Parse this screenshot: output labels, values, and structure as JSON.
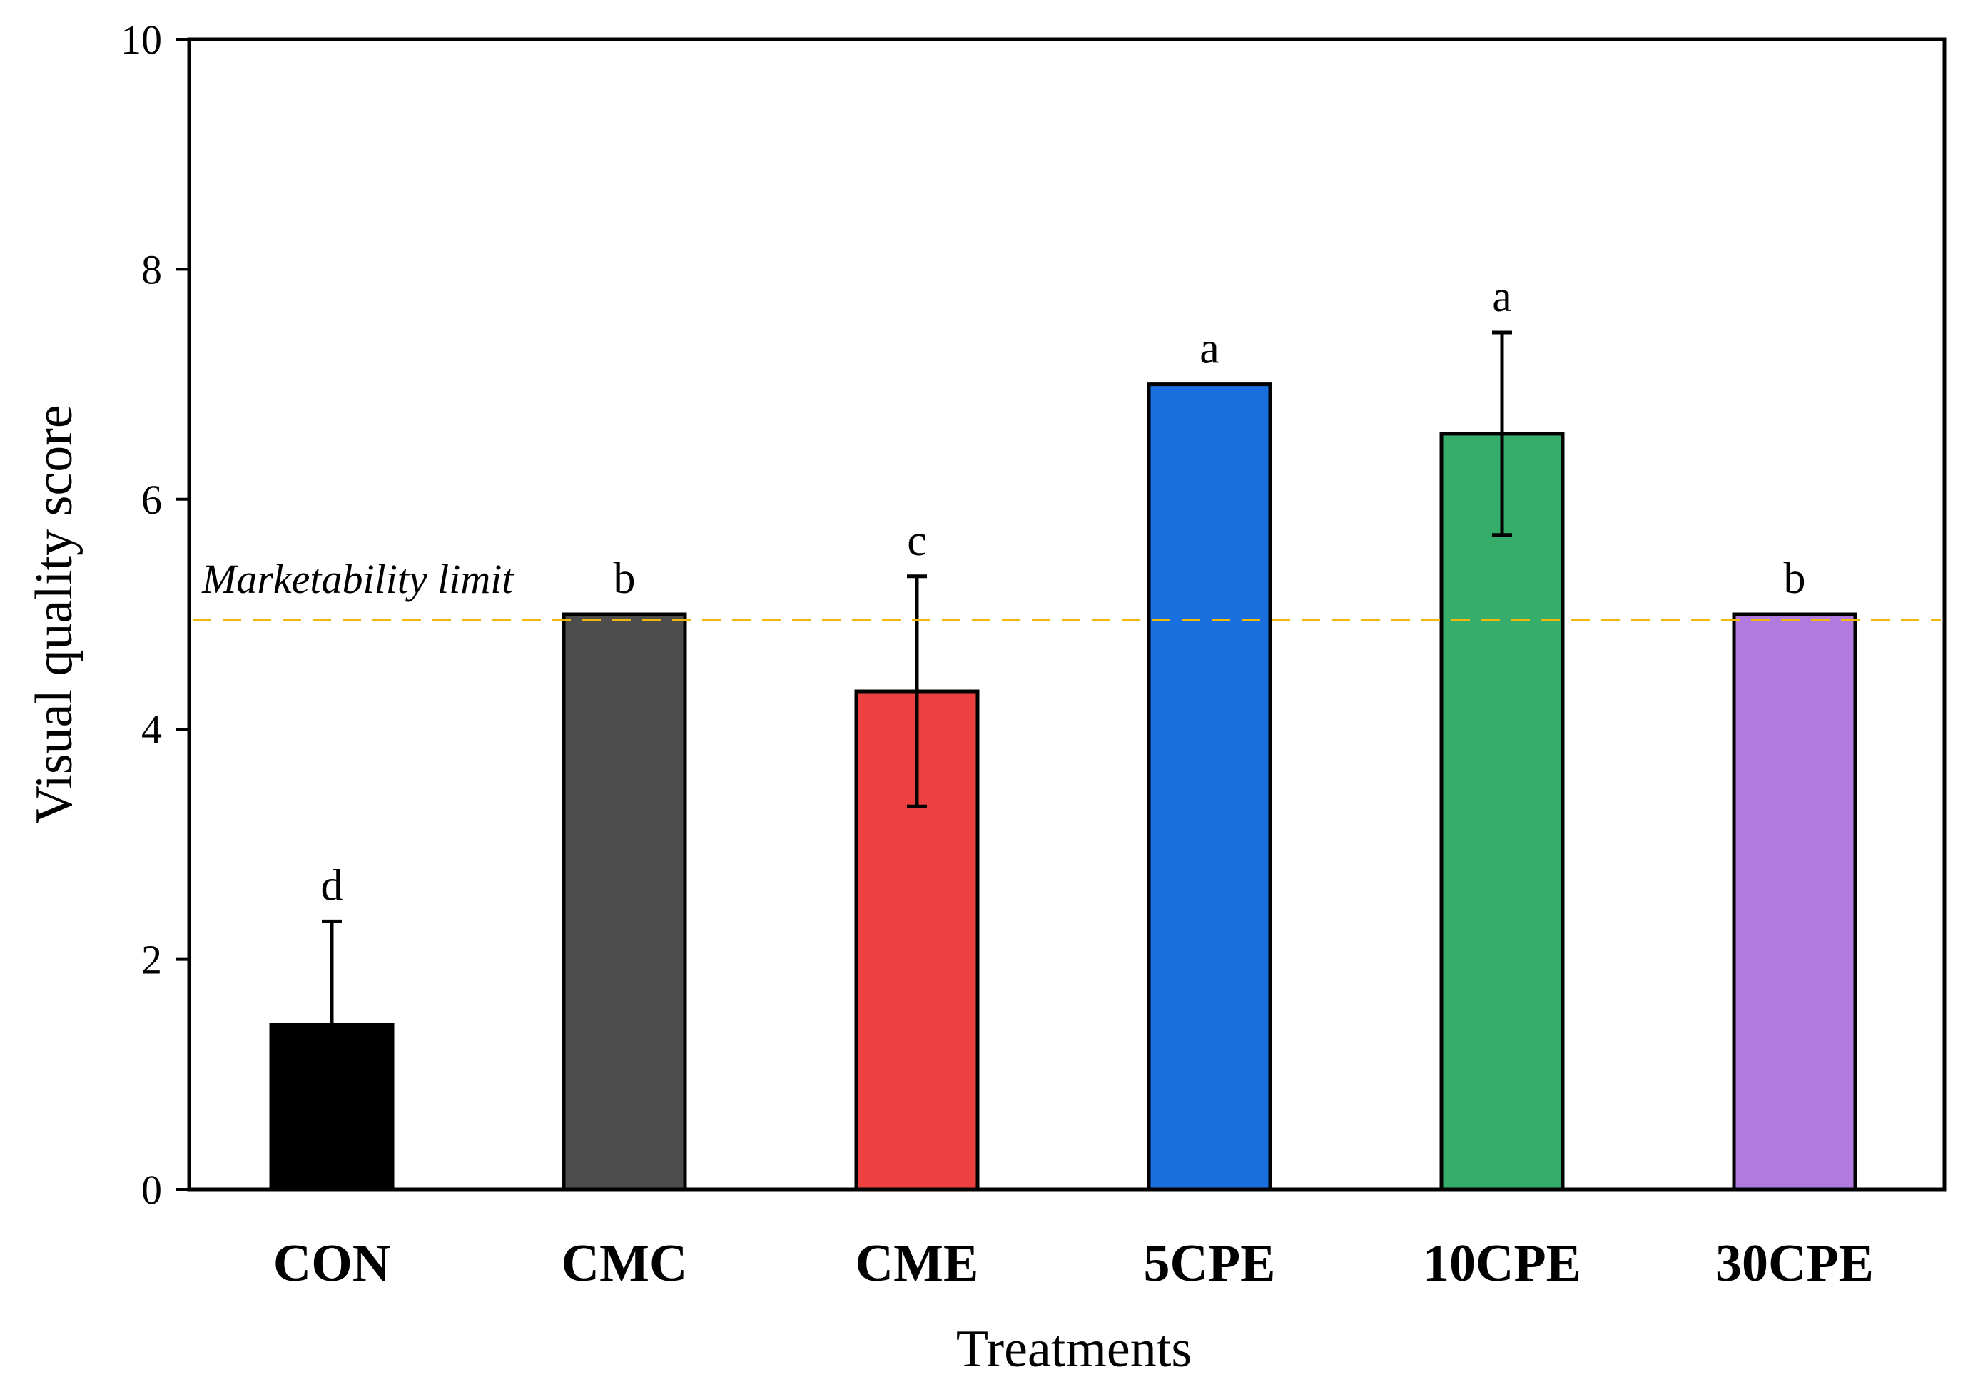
{
  "chart_data": {
    "type": "bar",
    "categories": [
      "CON",
      "CMC",
      "CME",
      "5CPE",
      "10CPE",
      "30CPE"
    ],
    "values": [
      1.43,
      5.0,
      4.33,
      7.0,
      6.57,
      5.0
    ],
    "errors": [
      0.9,
      0,
      1.0,
      0,
      0.88,
      0
    ],
    "significance_letters": [
      "d",
      "b",
      "c",
      "a",
      "a",
      "b"
    ],
    "colors": [
      "#000000",
      "#4d4d4d",
      "#ee4040",
      "#1a6fdf",
      "#37ad6b",
      "#b07ade"
    ],
    "xlabel": "Treatments",
    "ylabel": "Visual quality score",
    "ylim": [
      0,
      10
    ],
    "yticks": [
      0,
      2,
      4,
      6,
      8,
      10
    ],
    "reference_line": {
      "value": 4.95,
      "label": "Marketability limit",
      "color": "#f2b90c",
      "style": "dashed"
    },
    "grid": false
  }
}
